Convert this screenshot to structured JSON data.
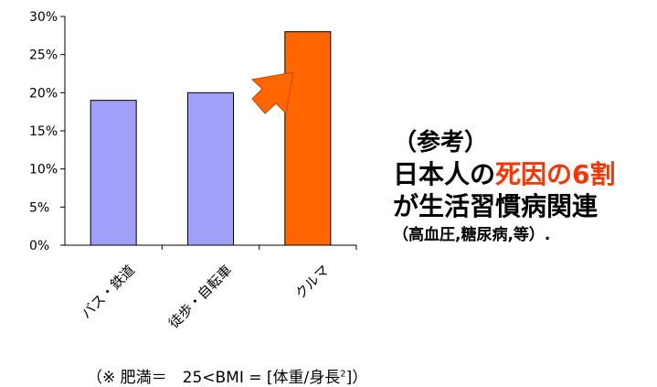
{
  "chart_data": {
    "type": "bar",
    "categories": [
      "バス・鉄道",
      "徒歩・自転車",
      "クルマ"
    ],
    "values": [
      19,
      20,
      28
    ],
    "ylim": [
      0,
      30
    ],
    "yticks": [
      "0%",
      "5%",
      "10%",
      "15%",
      "20%",
      "25%",
      "30%"
    ],
    "colors": [
      "#a0a0f8",
      "#a0a0f8",
      "#ff6600"
    ],
    "grid": false,
    "annotation": "arrow pointing to クルマ bar"
  },
  "note": {
    "line1": "（参考）",
    "line2_prefix": "日本人の",
    "line2_highlight": "死因の6割",
    "line3": "が生活習慣病関連",
    "line4": "（高血圧,糖尿病,等）."
  },
  "footnote": {
    "prefix": "（※ 肥満＝　25<BMI = [体重/身長",
    "sup": "2",
    "suffix": "]）"
  },
  "colors": {
    "accent_red": "#ff3300",
    "arrow": "#ff6600",
    "bar_blue": "#a0a0f8",
    "bar_orange": "#ff6600"
  }
}
